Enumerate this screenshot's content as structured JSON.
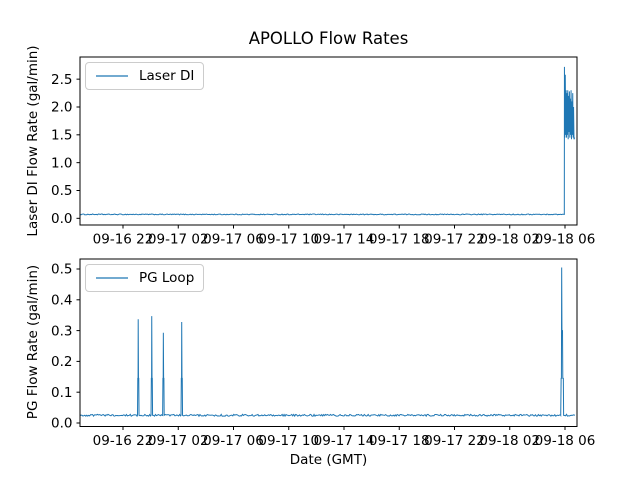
{
  "figure": {
    "background": "#ffffff",
    "accent_line_color": "#1f77b4",
    "spine_color": "#000000",
    "legend_border_color": "#cccccc"
  },
  "chart_data": [
    {
      "type": "line",
      "title": "APOLLO Flow Rates",
      "ylabel": "Laser DI Flow Rate (gal/min)",
      "xlabel": "",
      "legend_position": "upper left",
      "grid": false,
      "xlim": [
        18.886,
        54.869
      ],
      "ylim": [
        -0.12,
        2.898
      ],
      "yticks": [
        0.0,
        0.5,
        1.0,
        1.5,
        2.0,
        2.5
      ],
      "xticks": [
        22,
        26,
        30,
        34,
        38,
        42,
        46,
        50,
        54
      ],
      "xtick_labels": [
        "09-16 22",
        "09-17 02",
        "09-17 06",
        "09-17 10",
        "09-17 14",
        "09-17 18",
        "09-17 22",
        "09-18 02",
        "09-18 06"
      ],
      "series": [
        {
          "name": "Laser DI",
          "color": "#1f77b4",
          "baseline": 0.07,
          "noise": 0.008,
          "points": [
            [
              18.886,
              0.07
            ],
            [
              53.95,
              0.07
            ],
            [
              53.96,
              2.72
            ],
            [
              53.99,
              1.45
            ],
            [
              54.02,
              2.58
            ],
            [
              54.05,
              1.5
            ],
            [
              54.08,
              2.3
            ],
            [
              54.11,
              1.45
            ],
            [
              54.14,
              2.25
            ],
            [
              54.17,
              1.5
            ],
            [
              54.2,
              2.3
            ],
            [
              54.23,
              1.42
            ],
            [
              54.26,
              2.2
            ],
            [
              54.29,
              1.55
            ],
            [
              54.32,
              2.28
            ],
            [
              54.35,
              1.45
            ],
            [
              54.38,
              2.15
            ],
            [
              54.41,
              1.5
            ],
            [
              54.44,
              2.3
            ],
            [
              54.47,
              1.42
            ],
            [
              54.5,
              2.1
            ],
            [
              54.53,
              1.5
            ],
            [
              54.56,
              2.25
            ],
            [
              54.59,
              1.45
            ],
            [
              54.62,
              2.0
            ],
            [
              54.65,
              1.42
            ],
            [
              54.7,
              1.45
            ]
          ]
        }
      ]
    },
    {
      "type": "line",
      "title": "",
      "ylabel": "PG Flow Rate (gal/min)",
      "xlabel": "Date (GMT)",
      "legend_position": "upper left",
      "grid": false,
      "xlim": [
        18.886,
        54.869
      ],
      "ylim": [
        -0.0114,
        0.5325
      ],
      "yticks": [
        0.0,
        0.1,
        0.2,
        0.3,
        0.4,
        0.5
      ],
      "xticks": [
        22,
        26,
        30,
        34,
        38,
        42,
        46,
        50,
        54
      ],
      "xtick_labels": [
        "09-16 22",
        "09-17 02",
        "09-17 06",
        "09-17 10",
        "09-17 14",
        "09-17 18",
        "09-17 22",
        "09-18 02",
        "09-18 06"
      ],
      "series": [
        {
          "name": "PG Loop",
          "color": "#1f77b4",
          "baseline": 0.025,
          "noise": 0.003,
          "points": [
            [
              18.886,
              0.025
            ],
            [
              23.05,
              0.025
            ],
            [
              23.07,
              0.145
            ],
            [
              23.09,
              0.145
            ],
            [
              23.1,
              0.337
            ],
            [
              23.12,
              0.145
            ],
            [
              23.14,
              0.145
            ],
            [
              23.16,
              0.025
            ],
            [
              24.03,
              0.025
            ],
            [
              24.05,
              0.145
            ],
            [
              24.07,
              0.145
            ],
            [
              24.08,
              0.347
            ],
            [
              24.1,
              0.145
            ],
            [
              24.12,
              0.145
            ],
            [
              24.14,
              0.025
            ],
            [
              24.87,
              0.025
            ],
            [
              24.89,
              0.145
            ],
            [
              24.91,
              0.145
            ],
            [
              24.92,
              0.293
            ],
            [
              24.94,
              0.145
            ],
            [
              24.96,
              0.145
            ],
            [
              24.98,
              0.025
            ],
            [
              26.2,
              0.025
            ],
            [
              26.22,
              0.145
            ],
            [
              26.24,
              0.145
            ],
            [
              26.25,
              0.328
            ],
            [
              26.27,
              0.145
            ],
            [
              26.29,
              0.145
            ],
            [
              26.31,
              0.025
            ],
            [
              53.69,
              0.025
            ],
            [
              53.72,
              0.145
            ],
            [
              53.74,
              0.145
            ],
            [
              53.76,
              0.505
            ],
            [
              53.78,
              0.3
            ],
            [
              53.82,
              0.3
            ],
            [
              53.84,
              0.145
            ],
            [
              53.88,
              0.145
            ],
            [
              53.9,
              0.025
            ],
            [
              54.72,
              0.025
            ]
          ]
        }
      ]
    }
  ]
}
